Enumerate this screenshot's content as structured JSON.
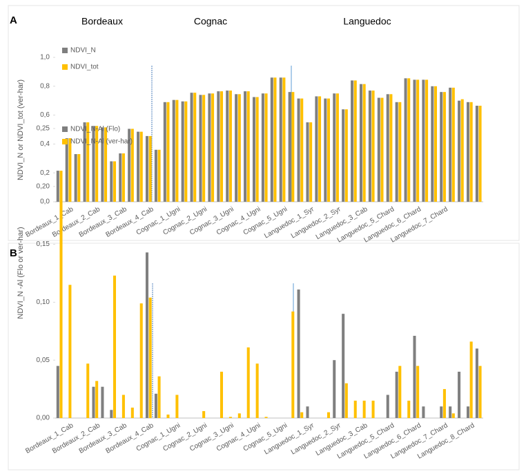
{
  "chart_data": [
    {
      "type": "bar",
      "panel_label": "A",
      "ylabel": "NDVI_N or NDVI_tot (ver-har)",
      "annotations": [
        "Bordeaux",
        "Cognac",
        "Languedoc"
      ],
      "ylim": [
        0,
        1
      ],
      "yticks": [
        {
          "value": 0,
          "label": "0,0"
        },
        {
          "value": 0.2,
          "label": "0,2"
        },
        {
          "value": 0.4,
          "label": "0,4"
        },
        {
          "value": 0.6,
          "label": "0,6"
        },
        {
          "value": 0.8,
          "label": "0,8"
        },
        {
          "value": 1,
          "label": "1,0"
        }
      ],
      "grid": false,
      "categories": [
        null,
        "Bordeaux_1_Cab",
        null,
        null,
        "Bordeaux_2_Cab",
        null,
        null,
        "Bordeaux_3_Cab",
        null,
        null,
        "Bordeaux_4_Cab",
        null,
        null,
        "Cognac_1_Ugni",
        null,
        null,
        "Cognac_2_Ugni",
        null,
        null,
        "Cognac_3_Ugni",
        null,
        null,
        "Cognac_4_Ugni",
        null,
        null,
        "Cognac_5_Ugni",
        null,
        null,
        "Languedoc_1_Syr",
        null,
        null,
        "Languedoc_2_Syr",
        null,
        null,
        "Languedoc_3_Cab",
        null,
        null,
        "Languedoc_5_Chard",
        null,
        null,
        "Languedoc_6_Chard",
        null,
        null,
        "Languedoc_7_Chard",
        null,
        null,
        null,
        null
      ],
      "series": [
        {
          "name": "NDVI_N",
          "color": "#7f7f7f",
          "values": [
            0.215,
            0.44,
            0.33,
            0.55,
            0.525,
            0.515,
            0.28,
            0.335,
            0.505,
            0.485,
            0.455,
            0.36,
            0.69,
            0.705,
            0.695,
            0.755,
            0.74,
            0.75,
            0.765,
            0.77,
            0.745,
            0.765,
            0.725,
            0.75,
            0.86,
            0.86,
            0.76,
            0.715,
            0.55,
            0.73,
            0.715,
            0.75,
            0.64,
            0.84,
            0.815,
            0.77,
            0.72,
            0.745,
            0.69,
            0.855,
            0.845,
            0.845,
            0.8,
            0.76,
            0.79,
            0.7,
            0.69,
            0.665
          ]
        },
        {
          "name": "NDVI_tot",
          "color": "#ffc000",
          "values": [
            0.215,
            0.44,
            0.33,
            0.55,
            0.525,
            0.515,
            0.28,
            0.335,
            0.505,
            0.485,
            0.455,
            0.36,
            0.69,
            0.705,
            0.695,
            0.755,
            0.74,
            0.75,
            0.765,
            0.77,
            0.745,
            0.765,
            0.725,
            0.75,
            0.86,
            0.86,
            0.76,
            0.715,
            0.55,
            0.73,
            0.715,
            0.75,
            0.64,
            0.84,
            0.815,
            0.77,
            0.72,
            0.745,
            0.69,
            0.855,
            0.845,
            0.845,
            0.8,
            0.76,
            0.79,
            0.71,
            0.69,
            0.665
          ]
        }
      ]
    },
    {
      "type": "bar",
      "panel_label": "B",
      "ylabel": "NDVI_N -Al (Flo or ver-har)",
      "ylim": [
        0,
        0.25
      ],
      "yticks": [
        {
          "value": 0,
          "label": "0,00"
        },
        {
          "value": 0.05,
          "label": "0,05"
        },
        {
          "value": 0.1,
          "label": "0,10"
        },
        {
          "value": 0.15,
          "label": "0,15"
        },
        {
          "value": 0.2,
          "label": "0,20"
        },
        {
          "value": 0.25,
          "label": "0,25"
        }
      ],
      "grid": false,
      "categories": [
        null,
        "Bordeaux_1_Cab",
        null,
        null,
        "Bordeaux_2_Cab",
        null,
        null,
        "Bordeaux_3_Cab",
        null,
        null,
        "Bordeaux_4_Cab",
        null,
        null,
        "Cognac_1_Ugni",
        null,
        null,
        "Cognac_2_Ugni",
        null,
        null,
        "Cognac_3_Ugni",
        null,
        null,
        "Cognac_4_Ugni",
        null,
        null,
        "Cognac_5_Ugni",
        null,
        null,
        "Languedoc_1_Syr",
        null,
        null,
        "Languedoc_2_Syr",
        null,
        null,
        "Languedoc_3_Cab",
        null,
        null,
        "Languedoc_5_Chard",
        null,
        null,
        "Languedoc_6_Chard",
        null,
        null,
        "Languedoc_7_Chard",
        null,
        null,
        "Languedoc_8_Chard",
        null
      ],
      "series": [
        {
          "name": "NDVI_N-Al (Flo)",
          "color": "#7f7f7f",
          "values": [
            0.045,
            0,
            0,
            0,
            0.027,
            0.027,
            0.007,
            0,
            0,
            0,
            0.143,
            0.021,
            0,
            0,
            0,
            0,
            0,
            0,
            0,
            0,
            0,
            0,
            0,
            0,
            0,
            0,
            0,
            0.111,
            0.01,
            0,
            0,
            0.05,
            0.09,
            0,
            0,
            0,
            0,
            0.02,
            0.04,
            0,
            0.071,
            0.01,
            0,
            0.01,
            0.01,
            0.04,
            0.01,
            0.06
          ]
        },
        {
          "name": "NDVI_N-Al (ver-har)",
          "color": "#ffc000",
          "values": [
            0.19,
            0.115,
            0,
            0.047,
            0.032,
            0,
            0.123,
            0.02,
            0.009,
            0.099,
            0.104,
            0.036,
            0.003,
            0.02,
            0,
            0,
            0.006,
            0,
            0.04,
            0.001,
            0.004,
            0.061,
            0.047,
            0.001,
            0,
            0,
            0.092,
            0.005,
            0,
            0,
            0.005,
            0,
            0.03,
            0.015,
            0.015,
            0.015,
            0,
            0,
            0.045,
            0.015,
            0.045,
            0,
            0,
            0.025,
            0.004,
            0,
            0.066,
            0.045
          ]
        }
      ]
    }
  ]
}
